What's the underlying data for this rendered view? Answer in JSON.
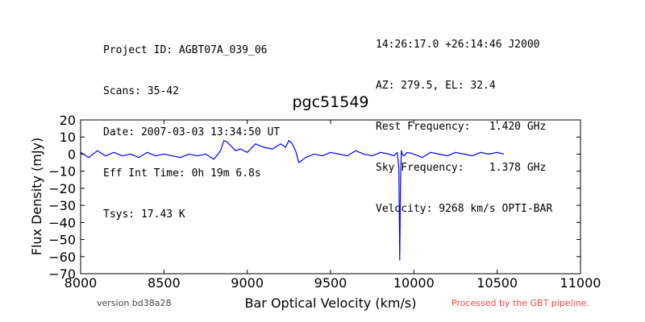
{
  "header_left": [
    "Project ID: AGBT07A_039_06",
    "Scans: 35-42",
    "Date: 2007-03-03 13:34:50 UT",
    "Eff Int Time: 0h 19m 6.8s",
    "Tsys: 17.43 K"
  ],
  "header_right": [
    "14:26:17.0 +26:14:46 J2000",
    "AZ: 279.5, EL: 32.4",
    "Rest Frequency:   1.420 GHz",
    "Sky Frequency:    1.378 GHz",
    "Velocity: 9268 km/s OPTI-BAR"
  ],
  "footer": {
    "version": "version bd38a28",
    "processed": "Processed by the GBT pipeline."
  },
  "colors": {
    "series": "#0000ff",
    "processed_text": "#ff4444"
  },
  "chart_data": {
    "type": "line",
    "title": "pgc51549",
    "xlabel": "Bar Optical Velocity (km/s)",
    "ylabel": "Flux Density (mJy)",
    "xlim": [
      8000,
      11000
    ],
    "ylim": [
      -70,
      20
    ],
    "xticks": [
      "8000",
      "8500",
      "9000",
      "9500",
      "10000",
      "10500",
      "11000"
    ],
    "yticks": [
      "20",
      "10",
      "0",
      "−10",
      "−20",
      "−30",
      "−40",
      "−50",
      "−60",
      "−70"
    ],
    "grid": false,
    "series": [
      {
        "x": [
          8000,
          8050,
          8100,
          8150,
          8200,
          8250,
          8300,
          8350,
          8400,
          8450,
          8500,
          8550,
          8600,
          8650,
          8700,
          8750,
          8800,
          8840,
          8860,
          8880,
          8900,
          8930,
          8960,
          9000,
          9050,
          9100,
          9150,
          9200,
          9230,
          9250,
          9270,
          9290,
          9310,
          9350,
          9400,
          9450,
          9500,
          9550,
          9600,
          9650,
          9700,
          9750,
          9800,
          9850,
          9880,
          9900,
          9910,
          9915,
          9920,
          9925,
          9930,
          9940,
          9960,
          10000,
          10050,
          10100,
          10150,
          10200,
          10250,
          10300,
          10350,
          10400,
          10450,
          10500,
          10540
        ],
        "y": [
          1,
          -2,
          2,
          -1,
          1,
          -1,
          0,
          -2,
          1,
          -1,
          0,
          -1,
          -2,
          0,
          -1,
          0,
          -3,
          2,
          8,
          7,
          5,
          2,
          3,
          1,
          6,
          4,
          3,
          6,
          4,
          8,
          6,
          2,
          -5,
          -2,
          0,
          -1,
          1,
          0,
          -1,
          2,
          0,
          -1,
          1,
          0,
          -1,
          1,
          -8,
          -62,
          -15,
          2,
          0,
          -1,
          1,
          0,
          -2,
          1,
          0,
          -1,
          1,
          0,
          -1,
          1,
          0,
          1,
          0
        ]
      }
    ]
  }
}
